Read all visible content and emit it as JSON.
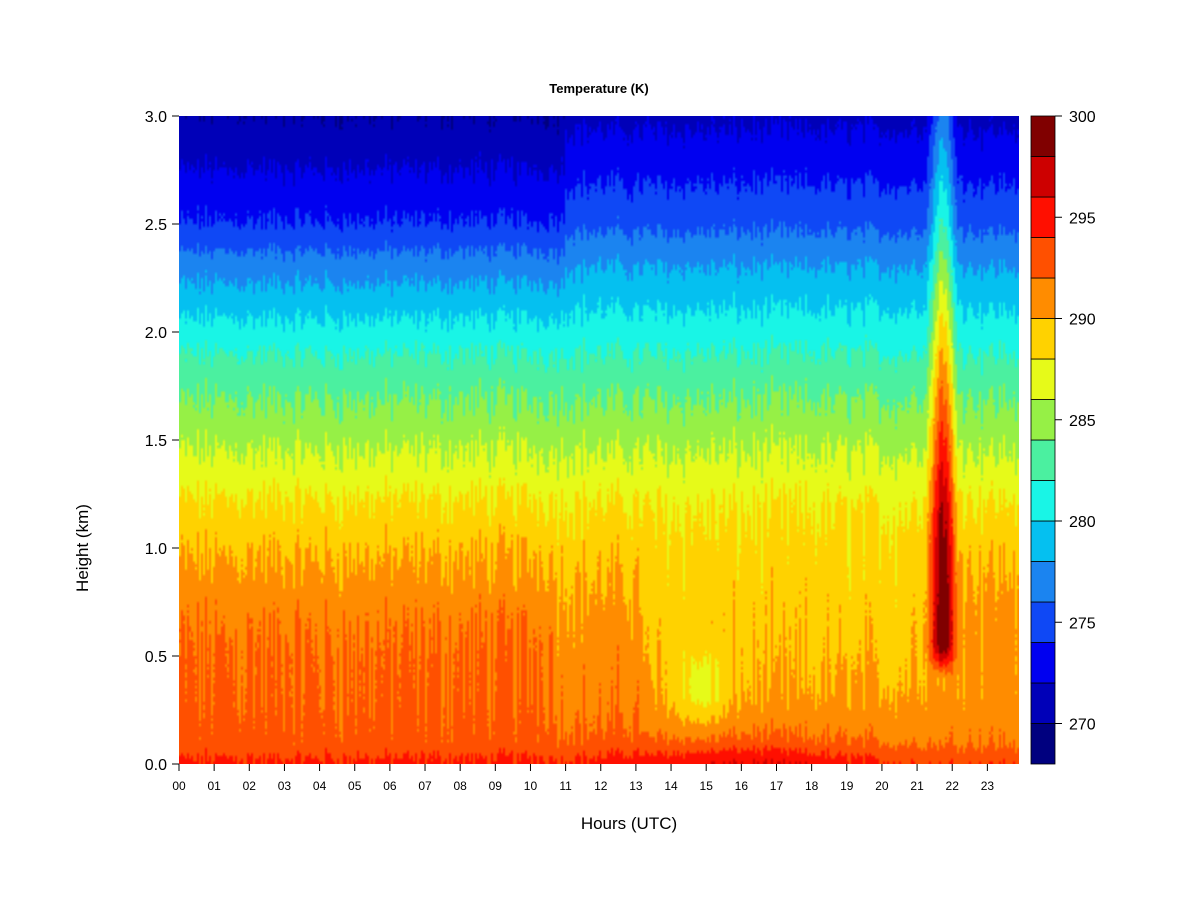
{
  "chart_data": {
    "type": "heatmap",
    "title": "Temperature (K)",
    "xlabel": "Hours (UTC)",
    "ylabel": "Height (km)",
    "xlim": [
      0,
      23.9
    ],
    "ylim": [
      0.0,
      3.0
    ],
    "x_ticks": [
      "00",
      "01",
      "02",
      "03",
      "04",
      "05",
      "06",
      "07",
      "08",
      "09",
      "10",
      "11",
      "12",
      "13",
      "14",
      "15",
      "16",
      "17",
      "18",
      "19",
      "20",
      "21",
      "22",
      "23"
    ],
    "y_ticks": [
      "0.0",
      "0.5",
      "1.0",
      "1.5",
      "2.0",
      "2.5",
      "3.0"
    ],
    "colorbar": {
      "min": 268,
      "max": 300,
      "step": 2,
      "ticks": [
        "270",
        "275",
        "280",
        "285",
        "290",
        "295",
        "300"
      ],
      "colors": [
        "#00007F",
        "#0000B8",
        "#0000F0",
        "#0F48F5",
        "#1B84F0",
        "#05C0F0",
        "#19F5E6",
        "#4BF0A0",
        "#96F046",
        "#E6FA19",
        "#FFD200",
        "#FF8C00",
        "#FF5000",
        "#FF0F00",
        "#CD0000",
        "#800000"
      ]
    },
    "reference_profile": {
      "height_km": [
        0.0,
        0.1,
        0.3,
        0.5,
        0.7,
        1.0,
        1.2,
        1.5,
        1.8,
        2.0,
        2.3,
        2.5,
        2.8,
        3.0
      ],
      "temperature_K": [
        294,
        292,
        291,
        290.5,
        290,
        289,
        288,
        285.5,
        283,
        281,
        278,
        275.5,
        273,
        271.5
      ]
    },
    "grid": false,
    "legend": "colorbar-right"
  }
}
